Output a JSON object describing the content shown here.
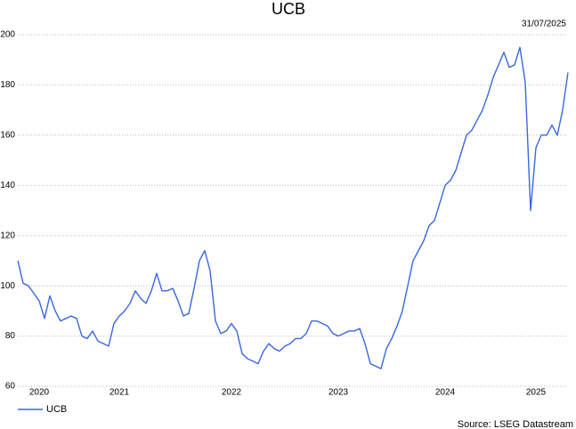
{
  "chart_data": {
    "type": "line",
    "title": "UCB",
    "annotation": "31/07/2025",
    "source": "Source: LSEG Datastream",
    "categories": [
      null,
      null,
      null,
      null,
      "2020",
      null,
      null,
      null,
      null,
      null,
      null,
      null,
      null,
      null,
      null,
      null,
      null,
      null,
      null,
      "2021",
      null,
      null,
      null,
      null,
      null,
      null,
      null,
      null,
      null,
      null,
      null,
      null,
      null,
      null,
      null,
      null,
      null,
      null,
      null,
      null,
      "2022",
      null,
      null,
      null,
      null,
      null,
      null,
      null,
      null,
      null,
      null,
      null,
      null,
      null,
      null,
      null,
      null,
      null,
      null,
      null,
      "2023",
      null,
      null,
      null,
      null,
      null,
      null,
      null,
      null,
      null,
      null,
      null,
      null,
      null,
      null,
      null,
      null,
      null,
      null,
      null,
      "2024",
      null,
      null,
      null,
      null,
      null,
      null,
      null,
      null,
      null,
      null,
      null,
      null,
      null,
      null,
      null,
      null,
      "2025",
      null,
      null,
      null,
      null,
      null,
      null
    ],
    "series": [
      {
        "name": "UCB",
        "color": "#3a67e0",
        "values": [
          110,
          101,
          100,
          97,
          94,
          87,
          96,
          90,
          86,
          87,
          88,
          87,
          80,
          79,
          82,
          78,
          77,
          76,
          85,
          88,
          90,
          93,
          98,
          95,
          93,
          98,
          105,
          98,
          98,
          99,
          94,
          88,
          89,
          99,
          110,
          114,
          106,
          86,
          81,
          82,
          85,
          82,
          73,
          71,
          70,
          69,
          74,
          77,
          75,
          74,
          76,
          77,
          79,
          79,
          81,
          86,
          86,
          85,
          84,
          81,
          80,
          81,
          82,
          82,
          83,
          77,
          69,
          68,
          67,
          75,
          79,
          84,
          90,
          100,
          110,
          114,
          118,
          124,
          126,
          133,
          140,
          142,
          146,
          153,
          160,
          162,
          166,
          170,
          176,
          183,
          188,
          193,
          187,
          188,
          195,
          181,
          130,
          155,
          160,
          160,
          164,
          160,
          170,
          185
        ]
      }
    ],
    "ylim": [
      60,
      200
    ],
    "yticks": [
      60,
      80,
      100,
      120,
      140,
      160,
      180,
      200
    ],
    "grid": true,
    "legend": "bottom-left"
  }
}
